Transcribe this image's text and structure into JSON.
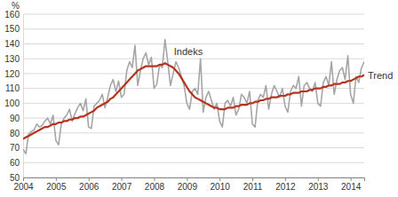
{
  "chart_data": {
    "type": "line",
    "y_label": "%",
    "categories": [
      "2004",
      null,
      null,
      null,
      null,
      null,
      null,
      null,
      null,
      null,
      null,
      null,
      "2005",
      null,
      null,
      null,
      null,
      null,
      null,
      null,
      null,
      null,
      null,
      null,
      "2006",
      null,
      null,
      null,
      null,
      null,
      null,
      null,
      null,
      null,
      null,
      null,
      "2007",
      null,
      null,
      null,
      null,
      null,
      null,
      null,
      null,
      null,
      null,
      null,
      "2008",
      null,
      null,
      null,
      null,
      null,
      null,
      null,
      null,
      null,
      null,
      null,
      "2009",
      null,
      null,
      null,
      null,
      null,
      null,
      null,
      null,
      null,
      null,
      null,
      "2010",
      null,
      null,
      null,
      null,
      null,
      null,
      null,
      null,
      null,
      null,
      null,
      "2011",
      null,
      null,
      null,
      null,
      null,
      null,
      null,
      null,
      null,
      null,
      null,
      "2012",
      null,
      null,
      null,
      null,
      null,
      null,
      null,
      null,
      null,
      null,
      null,
      "2013",
      null,
      null,
      null,
      null,
      null,
      null,
      null,
      null,
      null,
      null,
      null,
      "2014",
      null,
      null,
      null,
      null,
      null
    ],
    "series": [
      {
        "name": "Indeks",
        "color": "#a6a6a6",
        "values": [
          69,
          66,
          79,
          81,
          82,
          86,
          84,
          85,
          88,
          90,
          86,
          92,
          75,
          72,
          86,
          90,
          92,
          96,
          88,
          93,
          97,
          100,
          95,
          103,
          84,
          83,
          98,
          100,
          102,
          106,
          97,
          104,
          112,
          116,
          108,
          115,
          104,
          106,
          122,
          128,
          124,
          139,
          112,
          122,
          130,
          134,
          126,
          131,
          110,
          113,
          126,
          124,
          143,
          128,
          112,
          120,
          128,
          124,
          118,
          112,
          100,
          96,
          108,
          110,
          106,
          130,
          94,
          104,
          108,
          102,
          96,
          100,
          88,
          84,
          100,
          102,
          98,
          104,
          92,
          96,
          106,
          104,
          100,
          108,
          86,
          84,
          102,
          106,
          104,
          112,
          96,
          106,
          112,
          108,
          104,
          110,
          98,
          94,
          108,
          112,
          110,
          118,
          98,
          112,
          114,
          110,
          108,
          114,
          100,
          98,
          114,
          118,
          112,
          128,
          106,
          116,
          122,
          124,
          116,
          132,
          106,
          100,
          118,
          114,
          124,
          128
        ]
      },
      {
        "name": "Trend",
        "color": "#b5331f",
        "values": [
          76,
          77,
          78,
          79,
          80,
          81,
          82,
          83,
          84,
          84,
          85,
          86,
          86,
          87,
          87,
          88,
          88,
          89,
          89,
          90,
          90,
          91,
          91,
          92,
          93,
          94,
          95,
          97,
          98,
          99,
          100,
          101,
          103,
          104,
          106,
          108,
          110,
          112,
          114,
          116,
          118,
          120,
          122,
          123,
          124,
          125,
          125,
          125,
          125,
          125,
          126,
          126,
          127,
          126,
          125,
          124,
          122,
          120,
          117,
          114,
          111,
          108,
          106,
          104,
          103,
          102,
          101,
          100,
          99,
          98,
          97,
          97,
          96,
          96,
          96,
          97,
          97,
          97,
          98,
          98,
          99,
          99,
          99,
          100,
          100,
          101,
          101,
          102,
          102,
          103,
          103,
          104,
          104,
          104,
          105,
          105,
          105,
          106,
          106,
          107,
          107,
          107,
          108,
          108,
          108,
          109,
          109,
          110,
          110,
          110,
          111,
          111,
          112,
          112,
          113,
          113,
          113,
          114,
          114,
          115,
          115,
          116,
          117,
          118,
          118,
          119
        ]
      }
    ],
    "ylim": [
      50,
      160
    ],
    "yticks": [
      50,
      60,
      70,
      80,
      90,
      100,
      110,
      120,
      130,
      140,
      150,
      160
    ],
    "grid": true
  }
}
